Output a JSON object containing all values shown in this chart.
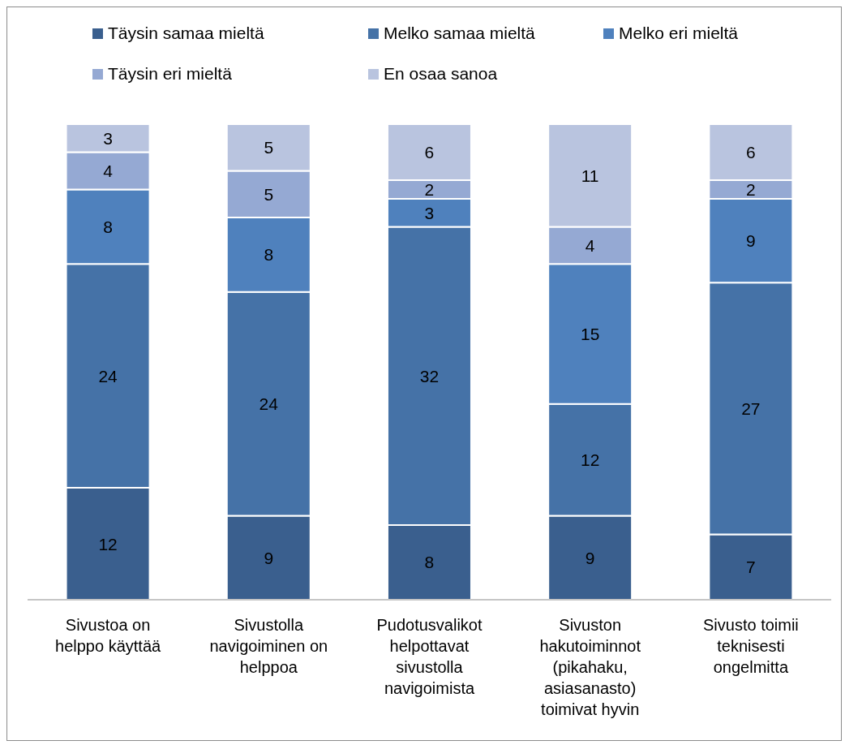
{
  "chart_data": {
    "type": "bar",
    "stacked": true,
    "data_labels": true,
    "legend": "top",
    "grid": false,
    "categories": [
      "Sivustoa on helppo käyttää",
      "Sivustolla navigoiminen on helppoa",
      "Pudotusvalikot helpottavat sivustolla navigoimista",
      "Sivuston hakutoiminnot (pikahaku, asiasanasto) toimivat hyvin",
      "Sivusto toimii teknisesti ongelmitta"
    ],
    "series": [
      {
        "name": "Täysin samaa mieltä",
        "color": "#3a5f8e",
        "values": [
          12,
          9,
          8,
          9,
          7
        ]
      },
      {
        "name": "Melko samaa mieltä",
        "color": "#4572a7",
        "values": [
          24,
          24,
          32,
          12,
          27
        ]
      },
      {
        "name": "Melko eri mieltä",
        "color": "#4f81bd",
        "values": [
          8,
          8,
          3,
          15,
          9
        ]
      },
      {
        "name": "Täysin eri mieltä",
        "color": "#95a9d3",
        "values": [
          4,
          5,
          2,
          4,
          2
        ]
      },
      {
        "name": "En osaa sanoa",
        "color": "#b9c4df",
        "values": [
          3,
          5,
          6,
          11,
          6
        ]
      }
    ]
  }
}
